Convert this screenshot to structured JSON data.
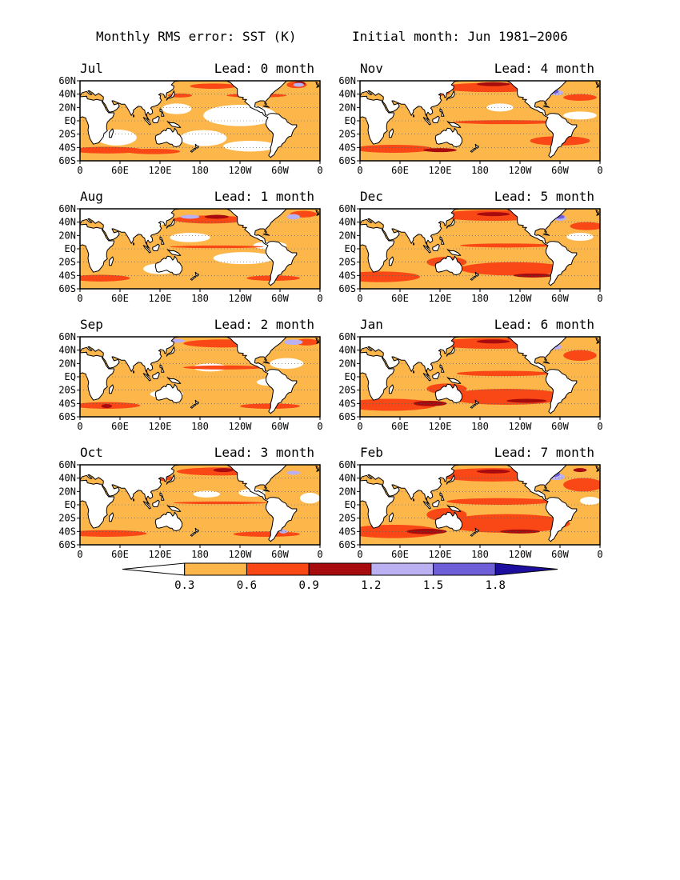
{
  "figure": {
    "title_left": "Monthly RMS error: SST (K)",
    "title_right": "Initial month: Jun 1981−2006"
  },
  "colors": {
    "ocean_base": "#fcb64a",
    "ocean_low": "#ffffff",
    "band_mid": "#f94815",
    "band_high": "#a80b0d",
    "band_vhigh": "#bab0f2",
    "band_max": "#6e5ed8",
    "land": "#ffffff",
    "coast": "#000000"
  },
  "axes": {
    "lat_labels": [
      "60N",
      "40N",
      "20N",
      "EQ",
      "20S",
      "40S",
      "60S"
    ],
    "lon_labels": [
      "0",
      "60E",
      "120E",
      "180",
      "120W",
      "60W",
      "0"
    ]
  },
  "panels": [
    {
      "month": "Jul",
      "lead": "Lead: 0 month"
    },
    {
      "month": "Aug",
      "lead": "Lead: 1 month"
    },
    {
      "month": "Sep",
      "lead": "Lead: 2 month"
    },
    {
      "month": "Oct",
      "lead": "Lead: 3 month"
    },
    {
      "month": "Nov",
      "lead": "Lead: 4 month"
    },
    {
      "month": "Dec",
      "lead": "Lead: 5 month"
    },
    {
      "month": "Jan",
      "lead": "Lead: 6 month"
    },
    {
      "month": "Feb",
      "lead": "Lead: 7 month"
    }
  ],
  "colorbar": {
    "labels": [
      "0.3",
      "0.6",
      "0.9",
      "1.2",
      "1.5",
      "1.8"
    ],
    "colors": [
      "#ffffff",
      "#fcb64a",
      "#f94815",
      "#a80b0d",
      "#bab0f2",
      "#6e5ed8",
      "#1e0ea0"
    ]
  }
}
